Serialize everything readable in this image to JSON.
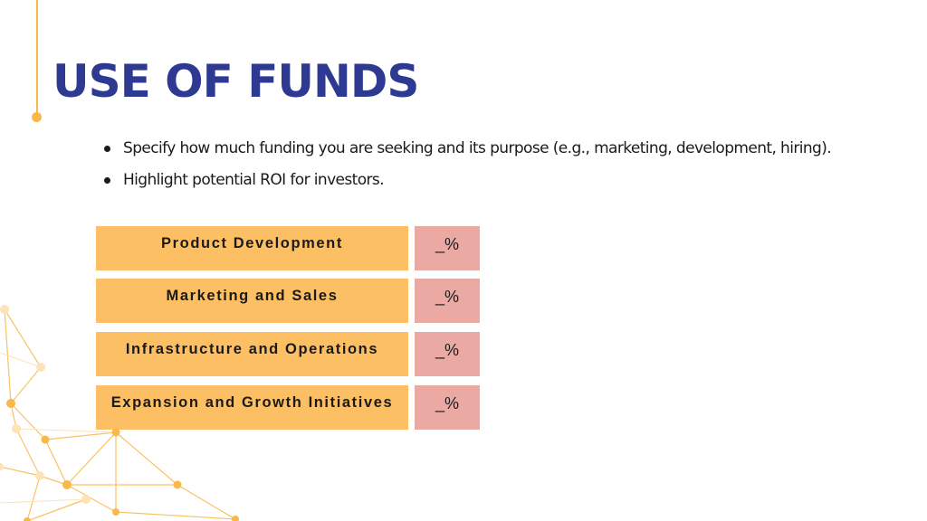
{
  "slide": {
    "title": "USE OF FUNDS",
    "bullets": [
      "Specify how much funding you are seeking and its purpose (e.g., marketing, development, hiring).",
      "Highlight potential ROI for investors."
    ],
    "allocation_table": [
      {
        "category": "Product Development",
        "percent": "_%"
      },
      {
        "category": "Marketing and Sales",
        "percent": "_%"
      },
      {
        "category": "Infrastructure and Operations",
        "percent": "_%"
      },
      {
        "category": "Expansion and Growth Initiatives",
        "percent": "_%"
      }
    ]
  },
  "colors": {
    "title": "#2e3a92",
    "accent": "#f8b84a",
    "category_fill": "#fdbf63",
    "percent_fill": "#eba9a4"
  }
}
